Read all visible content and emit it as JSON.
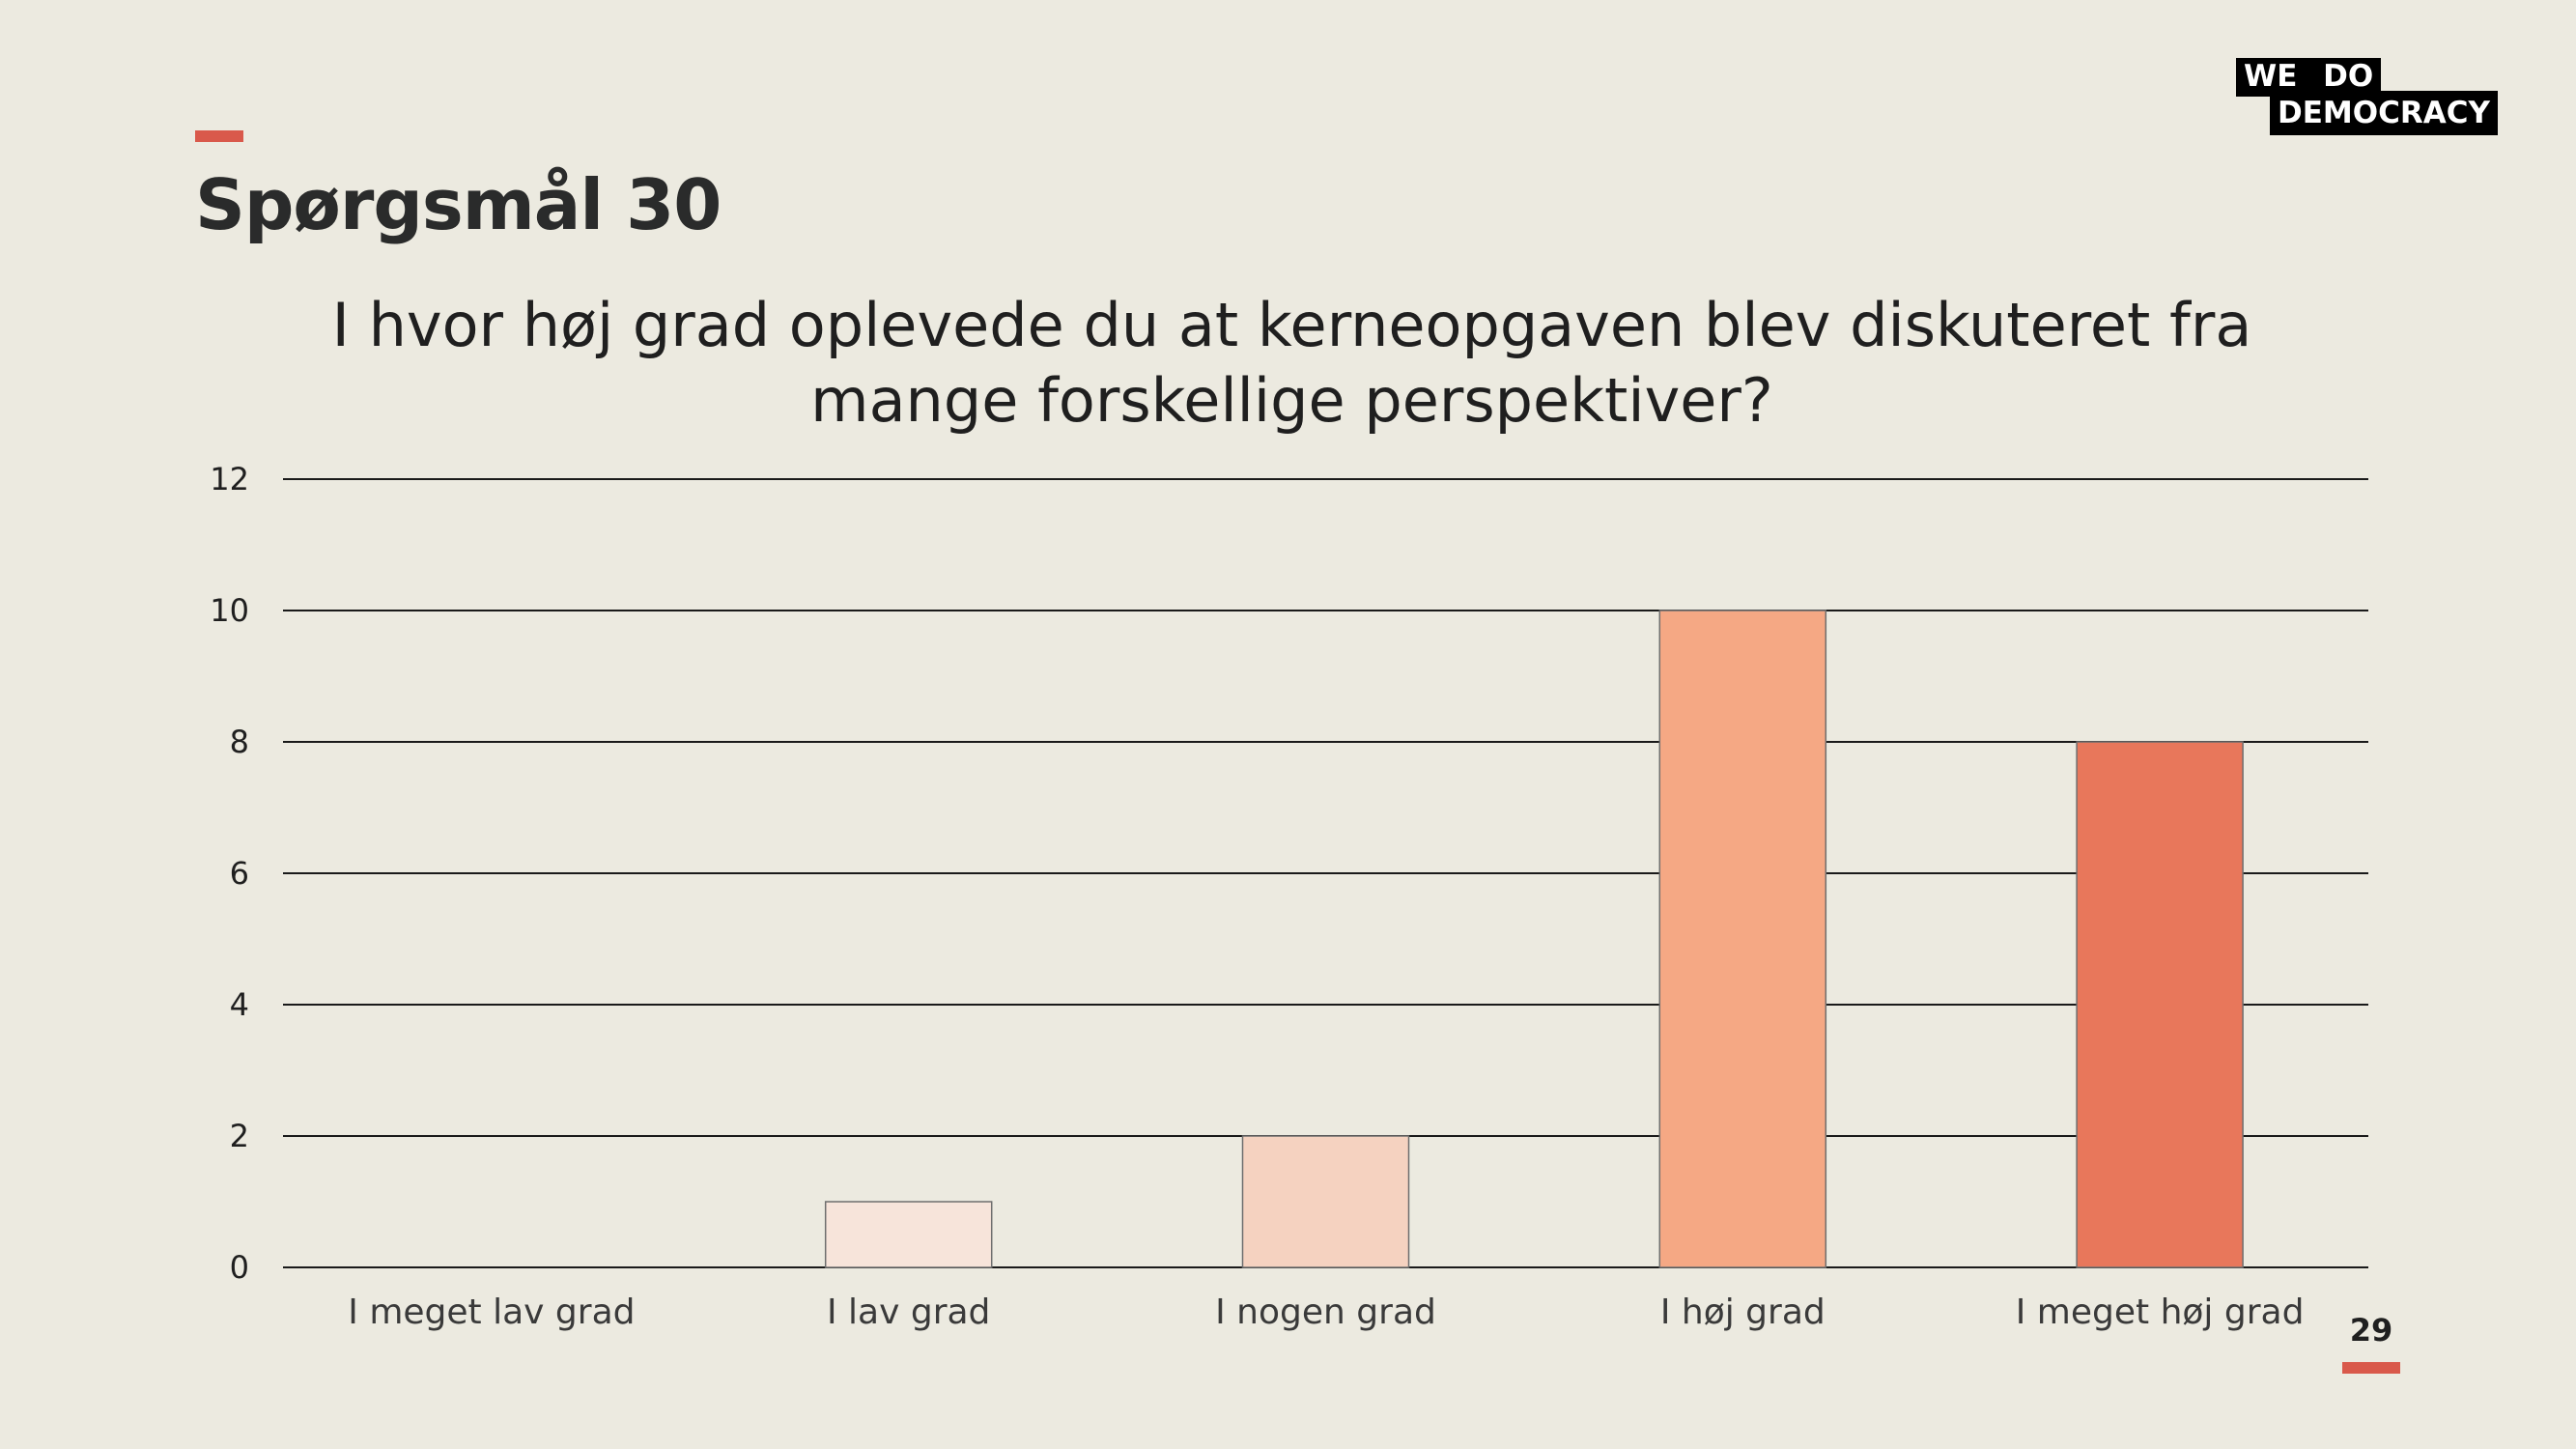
{
  "slide": {
    "title": "Spørgsmål 30",
    "page_number": "29"
  },
  "logo": {
    "line1": "WE DO",
    "line2": "DEMOCRACY"
  },
  "colors": {
    "background": "#eceae0",
    "accent": "#d9594b"
  },
  "chart_data": {
    "type": "bar",
    "title": "I hvor høj grad oplevede du at kerneopgaven blev diskuteret fra mange forskellige perspektiver?",
    "categories": [
      "I meget lav grad",
      "I lav grad",
      "I nogen grad",
      "I høj grad",
      "I meget høj grad"
    ],
    "values": [
      0,
      1,
      2,
      10,
      8
    ],
    "bar_colors": [
      "#f7e4da",
      "#f7e4da",
      "#f5d2c0",
      "#f5a884",
      "#e8775b"
    ],
    "xlabel": "",
    "ylabel": "",
    "ylim": [
      0,
      12
    ],
    "yticks": [
      0,
      2,
      4,
      6,
      8,
      10,
      12
    ],
    "grid": true,
    "legend": "none"
  }
}
